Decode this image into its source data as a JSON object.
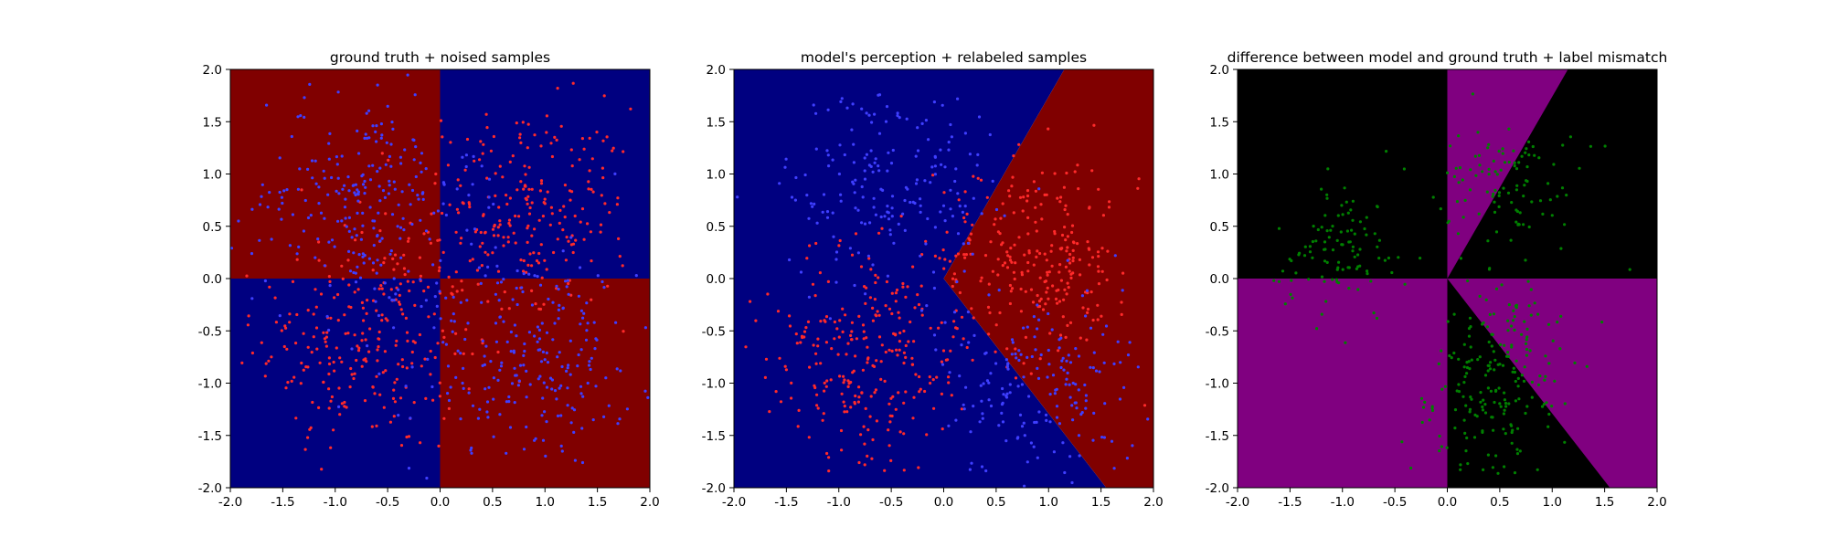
{
  "chart_data": [
    {
      "type": "scatter",
      "title": "ground truth + noised samples",
      "xlim": [
        -2.0,
        2.0
      ],
      "ylim": [
        -2.0,
        2.0
      ],
      "xticks": [
        "-2.0",
        "-1.5",
        "-1.0",
        "-0.5",
        "0.0",
        "0.5",
        "1.0",
        "1.5",
        "2.0"
      ],
      "yticks": [
        "-2.0",
        "-1.5",
        "-1.0",
        "-0.5",
        "0.0",
        "0.5",
        "1.0",
        "1.5",
        "2.0"
      ],
      "grid": false,
      "regions": [
        {
          "label": "class red",
          "color": "#800000",
          "polygon": [
            [
              -2,
              0
            ],
            [
              0,
              0
            ],
            [
              0,
              2
            ],
            [
              -2,
              2
            ]
          ]
        },
        {
          "label": "class blue",
          "color": "#000080",
          "polygon": [
            [
              0,
              0
            ],
            [
              2,
              0
            ],
            [
              2,
              2
            ],
            [
              0,
              2
            ]
          ]
        },
        {
          "label": "class blue",
          "color": "#000080",
          "polygon": [
            [
              -2,
              -2
            ],
            [
              0,
              -2
            ],
            [
              0,
              0
            ],
            [
              -2,
              0
            ]
          ]
        },
        {
          "label": "class red",
          "color": "#800000",
          "polygon": [
            [
              0,
              -2
            ],
            [
              2,
              -2
            ],
            [
              2,
              0
            ],
            [
              0,
              0
            ]
          ]
        }
      ],
      "series": [
        {
          "label": "red samples",
          "color": "#ff2a2a",
          "count": 500,
          "cluster_centers": [
            [
              -0.7,
              -0.6
            ],
            [
              0.8,
              0.6
            ]
          ],
          "spread": 0.75
        },
        {
          "label": "blue samples",
          "color": "#3f3fff",
          "count": 500,
          "cluster_centers": [
            [
              -0.7,
              0.8
            ],
            [
              0.8,
              -0.8
            ]
          ],
          "spread": 0.75
        }
      ]
    },
    {
      "type": "scatter",
      "title": "model's perception + relabeled samples",
      "xlim": [
        -2.0,
        2.0
      ],
      "ylim": [
        -2.0,
        2.0
      ],
      "xticks": [
        "-2.0",
        "-1.5",
        "-1.0",
        "-0.5",
        "0.0",
        "0.5",
        "1.0",
        "1.5",
        "2.0"
      ],
      "yticks": [
        "-2.0",
        "-1.5",
        "-1.0",
        "-0.5",
        "0.0",
        "0.5",
        "1.0",
        "1.5",
        "2.0"
      ],
      "grid": false,
      "regions": [
        {
          "label": "predicted blue",
          "color": "#000080",
          "polygon": [
            [
              -2,
              -2
            ],
            [
              1.55,
              -2
            ],
            [
              0,
              0
            ],
            [
              1.15,
              2
            ],
            [
              -2,
              2
            ]
          ]
        },
        {
          "label": "predicted red",
          "color": "#800000",
          "polygon": [
            [
              0,
              0
            ],
            [
              1.55,
              -2
            ],
            [
              2,
              -2
            ],
            [
              2,
              2
            ],
            [
              1.15,
              2
            ]
          ]
        }
      ],
      "series": [
        {
          "label": "relabeled red",
          "color": "#ff2a2a",
          "count": 520,
          "cluster_centers": [
            [
              -0.7,
              -0.7
            ],
            [
              0.9,
              0.2
            ]
          ],
          "spread": 0.7
        },
        {
          "label": "relabeled blue",
          "color": "#3f3fff",
          "count": 380,
          "cluster_centers": [
            [
              -0.5,
              0.9
            ],
            [
              0.9,
              -1.0
            ]
          ],
          "spread": 0.7
        }
      ]
    },
    {
      "type": "scatter",
      "title": "difference between model and ground truth + label mismatch",
      "xlim": [
        -2.0,
        2.0
      ],
      "ylim": [
        -2.0,
        2.0
      ],
      "xticks": [
        "-2.0",
        "-1.5",
        "-1.0",
        "-0.5",
        "0.0",
        "0.5",
        "1.0",
        "1.5",
        "2.0"
      ],
      "yticks": [
        "-2.0",
        "-1.5",
        "-1.0",
        "-0.5",
        "0.0",
        "0.5",
        "1.0",
        "1.5",
        "2.0"
      ],
      "grid": false,
      "regions": [
        {
          "label": "agreement",
          "color": "#000000",
          "polygon": [
            [
              -2,
              -2
            ],
            [
              2,
              -2
            ],
            [
              2,
              2
            ],
            [
              -2,
              2
            ]
          ]
        },
        {
          "label": "disagreement",
          "color": "#800080",
          "polygon": [
            [
              0,
              0
            ],
            [
              0,
              2
            ],
            [
              1.15,
              2
            ]
          ]
        },
        {
          "label": "disagreement",
          "color": "#800080",
          "polygon": [
            [
              -2,
              0
            ],
            [
              0,
              0
            ],
            [
              0,
              -2
            ],
            [
              -2,
              -2
            ]
          ]
        },
        {
          "label": "disagreement",
          "color": "#800080",
          "polygon": [
            [
              0,
              0
            ],
            [
              2,
              0
            ],
            [
              2,
              -2
            ],
            [
              1.55,
              -2
            ]
          ]
        }
      ],
      "series": [
        {
          "label": "label mismatch",
          "color": "#008000",
          "count": 420,
          "cluster_centers": [
            [
              -1.0,
              0.3
            ],
            [
              0.6,
              0.9
            ],
            [
              0.6,
              -0.6
            ],
            [
              0.3,
              -1.3
            ]
          ],
          "spread": 0.45
        }
      ]
    }
  ]
}
